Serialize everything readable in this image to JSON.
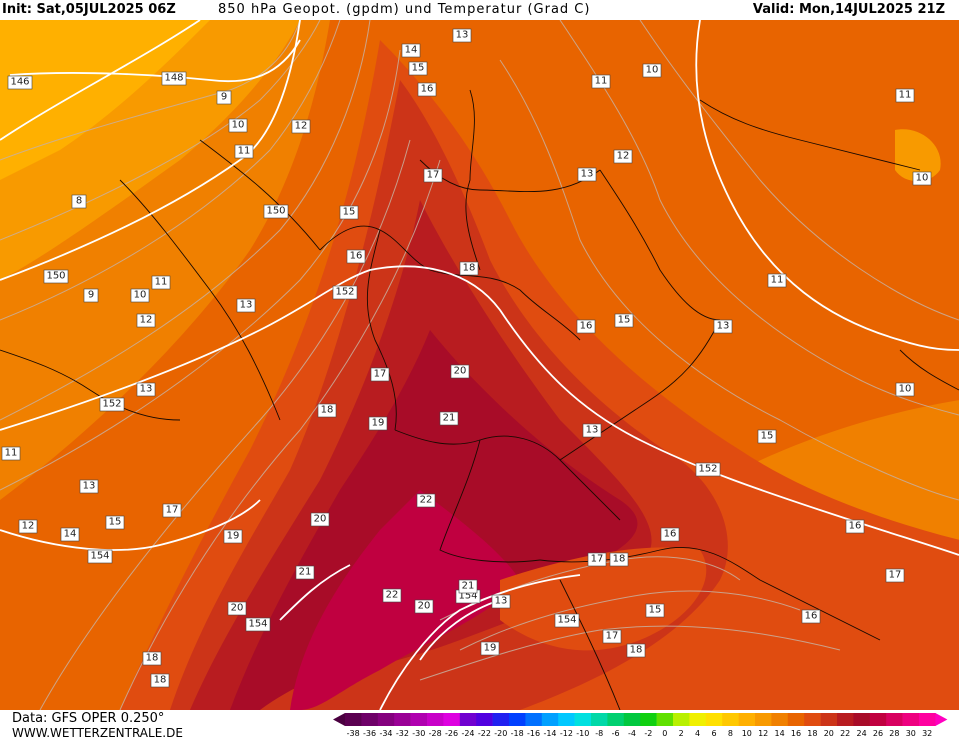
{
  "header": {
    "init": "Init: Sat,05JUL2025 06Z",
    "title": "850 hPa Geopot. (gpdm) und Temperatur (Grad C)",
    "valid": "Valid: Mon,14JUL2025 21Z"
  },
  "footer": {
    "data_source": "Data: GFS OPER 0.250°",
    "website": "WWW.WETTERZENTRALE.DE"
  },
  "legend": {
    "ticks": [
      "-38",
      "-36",
      "-34",
      "-32",
      "-30",
      "-28",
      "-26",
      "-24",
      "-22",
      "-20",
      "-18",
      "-16",
      "-14",
      "-12",
      "-10",
      "-8",
      "-6",
      "-4",
      "-2",
      "0",
      "2",
      "4",
      "6",
      "8",
      "10",
      "12",
      "14",
      "16",
      "18",
      "20",
      "22",
      "24",
      "26",
      "28",
      "30",
      "32"
    ],
    "colors": [
      "#5a0050",
      "#6e0068",
      "#84007e",
      "#9a0096",
      "#b000b0",
      "#c800c8",
      "#de00e0",
      "#7000d0",
      "#5000e0",
      "#2020f0",
      "#0040ff",
      "#0070ff",
      "#00a0ff",
      "#00c8ff",
      "#00e0e0",
      "#00d8a8",
      "#00d070",
      "#00c840",
      "#10d010",
      "#60e000",
      "#b8f000",
      "#f0f000",
      "#ffe000",
      "#ffc800",
      "#ffb000",
      "#f89a00",
      "#f08000",
      "#e86400",
      "#e04c10",
      "#cc3418",
      "#b81c20",
      "#a80c28",
      "#c00040",
      "#d80060",
      "#ee0080",
      "#ff00a0"
    ]
  },
  "map": {
    "geopotential_labels": [
      "146",
      "148",
      "150",
      "150",
      "152",
      "152",
      "152",
      "154",
      "154",
      "154",
      "154"
    ],
    "temperature_labels": [
      "8",
      "9",
      "9",
      "10",
      "10",
      "10",
      "10",
      "10",
      "11",
      "11",
      "11",
      "11",
      "11",
      "11",
      "12",
      "12",
      "12",
      "12",
      "13",
      "13",
      "13",
      "13",
      "13",
      "13",
      "13",
      "13",
      "14",
      "14",
      "15",
      "15",
      "15",
      "15",
      "15",
      "15",
      "16",
      "16",
      "16",
      "16",
      "16",
      "16",
      "17",
      "17",
      "17",
      "17",
      "17",
      "17",
      "18",
      "18",
      "18",
      "18",
      "18",
      "18",
      "19",
      "19",
      "19",
      "20",
      "20",
      "20",
      "20",
      "21",
      "21",
      "21",
      "22",
      "22"
    ]
  }
}
